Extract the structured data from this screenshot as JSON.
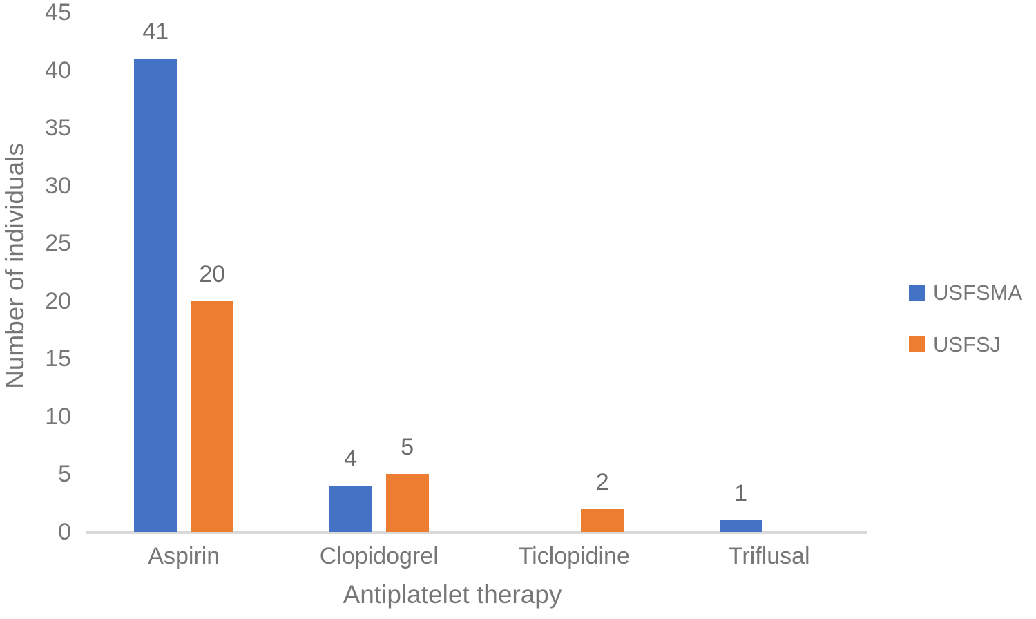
{
  "chart_data": {
    "type": "bar",
    "title": "",
    "xlabel": "Antiplatelet therapy",
    "ylabel": "Number of individuals",
    "categories": [
      "Aspirin",
      "Clopidogrel",
      "Ticlopidine",
      "Triflusal"
    ],
    "series": [
      {
        "name": "USFSMA",
        "color": "#4472c4",
        "values": [
          41,
          4,
          0,
          1
        ]
      },
      {
        "name": "USFSJ",
        "color": "#ed7d31",
        "values": [
          20,
          5,
          2,
          0
        ]
      }
    ],
    "ylim": [
      0,
      45
    ],
    "yticks": [
      0,
      5,
      10,
      15,
      20,
      25,
      30,
      35,
      40,
      45
    ],
    "grid": false,
    "legend_position": "right",
    "data_labels_shown": [
      41,
      20,
      4,
      5,
      2,
      1
    ],
    "axis_line_color": "#d9d9d9",
    "text_color": "#767676"
  }
}
